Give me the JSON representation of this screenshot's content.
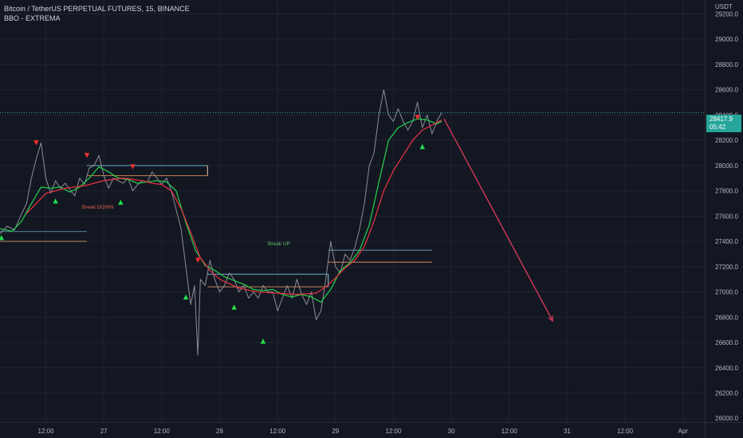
{
  "header": {
    "symbol_line": "Bitcoin / TetherUS PERPETUAL FUTURES, 15, BINANCE",
    "indicator_line": "BBO - EXTREMA"
  },
  "price_tag": {
    "price": "28417.9",
    "countdown": "05:42",
    "color": "#26a69a"
  },
  "chart_data": {
    "type": "line",
    "y_axis": {
      "unit_label": "USDT",
      "ticks": [
        26000,
        26200,
        26400,
        26600,
        26800,
        27000,
        27200,
        27400,
        27600,
        27800,
        28000,
        28200,
        28400,
        28600,
        28800,
        29000,
        29200
      ],
      "tick_labels": [
        "26000.0",
        "26200.0",
        "26400.0",
        "26600.0",
        "26800.0",
        "27000.0",
        "27200.0",
        "27400.0",
        "27600.0",
        "27800.0",
        "28000.0",
        "28200.0",
        "28400.0",
        "28600.0",
        "28800.0",
        "29000.0",
        "29200.0"
      ],
      "range": [
        25970,
        29310
      ]
    },
    "x_axis": {
      "ticks": [
        {
          "t": 12,
          "label": "12:00"
        },
        {
          "t": 24,
          "label": "27"
        },
        {
          "t": 36,
          "label": "12:00"
        },
        {
          "t": 48,
          "label": "28"
        },
        {
          "t": 60,
          "label": "12:00"
        },
        {
          "t": 72,
          "label": "29"
        },
        {
          "t": 84,
          "label": "12:00"
        },
        {
          "t": 96,
          "label": "30"
        },
        {
          "t": 108,
          "label": "12:00"
        },
        {
          "t": 120,
          "label": "31"
        },
        {
          "t": 132,
          "label": "12:00"
        },
        {
          "t": 144,
          "label": "Apr"
        }
      ],
      "range": [
        2.5,
        148.5
      ]
    },
    "grid": true,
    "current_price": 28418,
    "series": [
      {
        "id": "price",
        "color": "#8c8e96",
        "points": [
          [
            2.5,
            27460
          ],
          [
            4,
            27520
          ],
          [
            5.5,
            27490
          ],
          [
            7,
            27620
          ],
          [
            8,
            27700
          ],
          [
            9,
            27900
          ],
          [
            10,
            28050
          ],
          [
            11,
            28180
          ],
          [
            12,
            27900
          ],
          [
            13,
            27780
          ],
          [
            14,
            27880
          ],
          [
            15,
            27820
          ],
          [
            16,
            27860
          ],
          [
            17,
            27810
          ],
          [
            18,
            27760
          ],
          [
            19,
            27900
          ],
          [
            20,
            27850
          ],
          [
            21,
            27980
          ],
          [
            22,
            28000
          ],
          [
            23,
            28080
          ],
          [
            24,
            27920
          ],
          [
            25,
            27820
          ],
          [
            26,
            27900
          ],
          [
            27,
            27880
          ],
          [
            28,
            27860
          ],
          [
            29,
            27900
          ],
          [
            30,
            27800
          ],
          [
            31,
            27850
          ],
          [
            32,
            27880
          ],
          [
            33,
            27870
          ],
          [
            34,
            27950
          ],
          [
            35,
            27900
          ],
          [
            36,
            27850
          ],
          [
            37,
            27900
          ],
          [
            38,
            27800
          ],
          [
            39,
            27650
          ],
          [
            40,
            27500
          ],
          [
            41,
            27200
          ],
          [
            42,
            26900
          ],
          [
            42.8,
            27050
          ],
          [
            43.5,
            26500
          ],
          [
            44,
            27100
          ],
          [
            45,
            27050
          ],
          [
            46,
            27250
          ],
          [
            47,
            27100
          ],
          [
            48,
            27000
          ],
          [
            49,
            27050
          ],
          [
            50,
            27150
          ],
          [
            51,
            27100
          ],
          [
            52,
            27000
          ],
          [
            53,
            27050
          ],
          [
            54,
            26950
          ],
          [
            55,
            27000
          ],
          [
            56,
            26950
          ],
          [
            57,
            27050
          ],
          [
            58,
            27000
          ],
          [
            59,
            27000
          ],
          [
            60,
            26850
          ],
          [
            61,
            26950
          ],
          [
            62,
            27050
          ],
          [
            63,
            26950
          ],
          [
            64,
            27100
          ],
          [
            65,
            26980
          ],
          [
            66,
            26900
          ],
          [
            67,
            27000
          ],
          [
            68,
            26780
          ],
          [
            69,
            26850
          ],
          [
            70,
            27100
          ],
          [
            71,
            27400
          ],
          [
            72,
            27200
          ],
          [
            73,
            27150
          ],
          [
            74,
            27300
          ],
          [
            75,
            27250
          ],
          [
            76,
            27350
          ],
          [
            77,
            27500
          ],
          [
            78,
            27700
          ],
          [
            79,
            28000
          ],
          [
            80,
            28100
          ],
          [
            81,
            28400
          ],
          [
            82,
            28600
          ],
          [
            83,
            28400
          ],
          [
            84,
            28350
          ],
          [
            85,
            28450
          ],
          [
            86,
            28350
          ],
          [
            87,
            28280
          ],
          [
            88,
            28350
          ],
          [
            89,
            28500
          ],
          [
            90,
            28300
          ],
          [
            91,
            28400
          ],
          [
            92,
            28250
          ],
          [
            93,
            28350
          ],
          [
            94,
            28418
          ]
        ]
      },
      {
        "id": "fast-ma",
        "color": "#24c84a",
        "points": [
          [
            2.5,
            27500
          ],
          [
            5,
            27480
          ],
          [
            7,
            27560
          ],
          [
            9,
            27700
          ],
          [
            11,
            27830
          ],
          [
            13,
            27820
          ],
          [
            15,
            27830
          ],
          [
            17,
            27790
          ],
          [
            19,
            27830
          ],
          [
            21,
            27900
          ],
          [
            23,
            27990
          ],
          [
            25,
            27950
          ],
          [
            27,
            27900
          ],
          [
            29,
            27890
          ],
          [
            31,
            27860
          ],
          [
            33,
            27870
          ],
          [
            35,
            27880
          ],
          [
            37,
            27870
          ],
          [
            39,
            27800
          ],
          [
            41,
            27550
          ],
          [
            43,
            27330
          ],
          [
            45,
            27210
          ],
          [
            47,
            27170
          ],
          [
            49,
            27120
          ],
          [
            51,
            27090
          ],
          [
            53,
            27060
          ],
          [
            55,
            27020
          ],
          [
            57,
            27010
          ],
          [
            59,
            27020
          ],
          [
            61,
            26980
          ],
          [
            63,
            26960
          ],
          [
            65,
            26980
          ],
          [
            67,
            26960
          ],
          [
            69,
            26920
          ],
          [
            71,
            27020
          ],
          [
            73,
            27170
          ],
          [
            75,
            27230
          ],
          [
            77,
            27330
          ],
          [
            79,
            27530
          ],
          [
            81,
            27870
          ],
          [
            83,
            28200
          ],
          [
            85,
            28300
          ],
          [
            87,
            28340
          ],
          [
            89,
            28370
          ],
          [
            91,
            28360
          ],
          [
            93,
            28330
          ],
          [
            94,
            28350
          ]
        ]
      },
      {
        "id": "slow-ma",
        "color": "#e03340",
        "points": [
          [
            8,
            27620
          ],
          [
            12,
            27780
          ],
          [
            16,
            27820
          ],
          [
            20,
            27840
          ],
          [
            24,
            27880
          ],
          [
            28,
            27900
          ],
          [
            32,
            27880
          ],
          [
            34,
            27860
          ],
          [
            36,
            27850
          ],
          [
            38,
            27800
          ],
          [
            40,
            27660
          ],
          [
            42,
            27470
          ],
          [
            44,
            27270
          ],
          [
            46,
            27170
          ],
          [
            48,
            27100
          ],
          [
            52,
            27030
          ],
          [
            56,
            27000
          ],
          [
            60,
            26990
          ],
          [
            64,
            26980
          ],
          [
            68,
            26990
          ],
          [
            70,
            27040
          ],
          [
            72,
            27110
          ],
          [
            74,
            27190
          ],
          [
            76,
            27250
          ],
          [
            78,
            27360
          ],
          [
            80,
            27560
          ],
          [
            82,
            27800
          ],
          [
            84,
            27960
          ],
          [
            86,
            28080
          ],
          [
            88,
            28200
          ],
          [
            90,
            28280
          ],
          [
            92,
            28320
          ],
          [
            94,
            28360
          ]
        ]
      },
      {
        "id": "projection",
        "color": "#e03a5a",
        "points": [
          [
            94.5,
            28370
          ],
          [
            117,
            26770
          ]
        ]
      }
    ],
    "zones": [
      {
        "t0": 2.5,
        "t1": 20.5,
        "top": 27478,
        "bottom": 27400,
        "top_color": "#4f7f93",
        "bottom_color": "#a87e57"
      },
      {
        "t0": 20.5,
        "t1": 45.5,
        "top": 28000,
        "bottom": 27920,
        "top_color": "#5c8da3",
        "bottom_color": "#b5744e",
        "side": "#c9a98c"
      },
      {
        "t0": 45.5,
        "t1": 70.5,
        "top": 27140,
        "bottom": 27040,
        "top_color": "#5c8da3",
        "bottom_color": "#b5744e",
        "side": "#7fb0c4"
      },
      {
        "t0": 70.5,
        "t1": 92,
        "top": 27330,
        "bottom": 27235,
        "top_color": "#5c8da3",
        "bottom_color": "#b5744e"
      }
    ],
    "labels": [
      {
        "t": 19.5,
        "y": 27660,
        "text": "Break DOWN",
        "color": "#e0604a"
      },
      {
        "t": 58,
        "y": 27370,
        "text": "Break UP",
        "color": "#5fbf6a"
      }
    ],
    "markers": [
      {
        "t": 2.8,
        "y": 27430,
        "dir": "up",
        "color": "#22e04a"
      },
      {
        "t": 14,
        "y": 27720,
        "dir": "up",
        "color": "#22e04a"
      },
      {
        "t": 27.5,
        "y": 27710,
        "dir": "up",
        "color": "#22e04a"
      },
      {
        "t": 41,
        "y": 26960,
        "dir": "up",
        "color": "#22e04a"
      },
      {
        "t": 51,
        "y": 26880,
        "dir": "up",
        "color": "#22e04a"
      },
      {
        "t": 57,
        "y": 26610,
        "dir": "up",
        "color": "#22e04a"
      },
      {
        "t": 90,
        "y": 28150,
        "dir": "up",
        "color": "#22e04a"
      },
      {
        "t": 10,
        "y": 28180,
        "dir": "down",
        "color": "#f03030"
      },
      {
        "t": 20.5,
        "y": 28080,
        "dir": "down",
        "color": "#f03030"
      },
      {
        "t": 30,
        "y": 27990,
        "dir": "down",
        "color": "#f03030"
      },
      {
        "t": 43.5,
        "y": 27250,
        "dir": "down",
        "color": "#f03030"
      },
      {
        "t": 89,
        "y": 28380,
        "dir": "down",
        "color": "#f03030"
      }
    ]
  }
}
